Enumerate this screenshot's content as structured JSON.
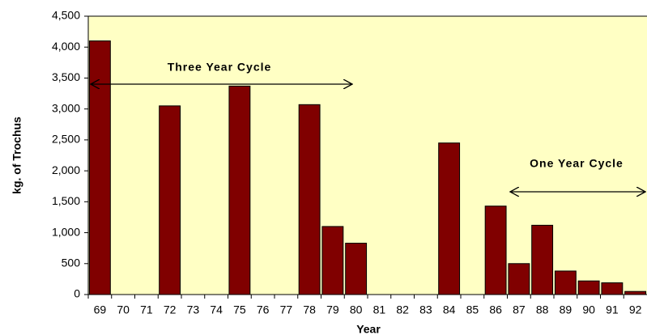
{
  "chart_data": {
    "type": "bar",
    "x_label": "Year",
    "y_label": "kg. of Trochus",
    "annotations": [
      "Three Year Cycle",
      "One Year Cycle"
    ],
    "categories": [
      "69",
      "70",
      "71",
      "72",
      "73",
      "74",
      "75",
      "76",
      "77",
      "78",
      "79",
      "80",
      "81",
      "82",
      "83",
      "84",
      "85",
      "86",
      "87",
      "88",
      "89",
      "90",
      "91",
      "92"
    ],
    "values": [
      4100,
      0,
      0,
      3050,
      0,
      0,
      3370,
      0,
      0,
      3070,
      1100,
      830,
      0,
      0,
      0,
      2450,
      0,
      1430,
      500,
      1120,
      380,
      220,
      190,
      50
    ],
    "color": "#800000",
    "background": "#ffffc4",
    "ylim": [
      0,
      4500
    ],
    "yticks": [
      0,
      500,
      {
        "value": 1000,
        "label": "1,000"
      },
      {
        "value": 1500,
        "label": "1,500"
      },
      {
        "value": 2000,
        "label": "2,000"
      },
      {
        "value": 2500,
        "label": "2,500"
      },
      {
        "value": 3000,
        "label": "3,000"
      },
      {
        "value": 3500,
        "label": "3,500"
      },
      {
        "value": 4000,
        "label": "4,000"
      },
      {
        "value": 4500,
        "label": "4,500"
      }
    ]
  }
}
